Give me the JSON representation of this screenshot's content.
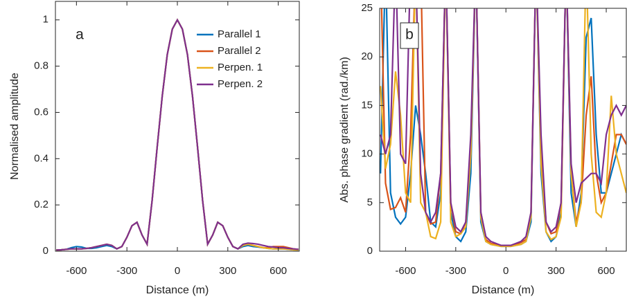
{
  "chart_data": [
    {
      "type": "line",
      "panel_label": "a",
      "xlabel": "Distance (m)",
      "ylabel": "Normalised amplitude",
      "xlim": [
        -725,
        725
      ],
      "ylim": [
        0,
        1.08
      ],
      "xticks": [
        -600,
        -300,
        0,
        300,
        600
      ],
      "yticks": [
        0,
        0.2,
        0.4,
        0.6,
        0.8,
        1
      ],
      "legend": "upper right",
      "x": [
        -720,
        -690,
        -660,
        -630,
        -600,
        -570,
        -540,
        -510,
        -480,
        -450,
        -420,
        -390,
        -360,
        -330,
        -300,
        -270,
        -240,
        -210,
        -180,
        -150,
        -120,
        -90,
        -60,
        -30,
        0,
        30,
        60,
        90,
        120,
        150,
        180,
        210,
        240,
        270,
        300,
        330,
        360,
        390,
        420,
        450,
        480,
        510,
        540,
        570,
        600,
        630,
        660,
        690,
        720
      ],
      "series": [
        {
          "name": "Parallel 1",
          "color": "#0072bd",
          "values": [
            0.005,
            0.006,
            0.008,
            0.015,
            0.02,
            0.018,
            0.012,
            0.012,
            0.015,
            0.02,
            0.025,
            0.02,
            0.01,
            0.02,
            0.06,
            0.11,
            0.125,
            0.07,
            0.03,
            0.22,
            0.45,
            0.67,
            0.85,
            0.96,
            1,
            0.96,
            0.85,
            0.67,
            0.45,
            0.22,
            0.03,
            0.07,
            0.125,
            0.11,
            0.06,
            0.02,
            0.01,
            0.02,
            0.025,
            0.02,
            0.018,
            0.015,
            0.012,
            0.01,
            0.01,
            0.01,
            0.008,
            0.006,
            0.005
          ]
        },
        {
          "name": "Parallel 2",
          "color": "#d95319",
          "values": [
            0.005,
            0.006,
            0.008,
            0.01,
            0.01,
            0.01,
            0.012,
            0.015,
            0.02,
            0.025,
            0.03,
            0.025,
            0.01,
            0.02,
            0.06,
            0.11,
            0.125,
            0.07,
            0.03,
            0.22,
            0.45,
            0.67,
            0.85,
            0.96,
            1,
            0.96,
            0.85,
            0.67,
            0.45,
            0.22,
            0.03,
            0.07,
            0.125,
            0.11,
            0.06,
            0.02,
            0.01,
            0.025,
            0.03,
            0.025,
            0.02,
            0.015,
            0.015,
            0.02,
            0.02,
            0.02,
            0.015,
            0.01,
            0.008
          ]
        },
        {
          "name": "Perpen. 1",
          "color": "#edb120",
          "values": [
            0.005,
            0.006,
            0.008,
            0.01,
            0.01,
            0.01,
            0.012,
            0.015,
            0.02,
            0.025,
            0.03,
            0.025,
            0.01,
            0.02,
            0.06,
            0.11,
            0.125,
            0.07,
            0.03,
            0.22,
            0.45,
            0.67,
            0.85,
            0.96,
            1,
            0.96,
            0.85,
            0.67,
            0.45,
            0.22,
            0.03,
            0.07,
            0.125,
            0.11,
            0.06,
            0.02,
            0.01,
            0.025,
            0.03,
            0.025,
            0.02,
            0.015,
            0.012,
            0.01,
            0.01,
            0.01,
            0.008,
            0.006,
            0.005
          ]
        },
        {
          "name": "Perpen. 2",
          "color": "#7e2f8e",
          "values": [
            0.005,
            0.006,
            0.008,
            0.01,
            0.01,
            0.01,
            0.012,
            0.015,
            0.02,
            0.025,
            0.03,
            0.025,
            0.01,
            0.02,
            0.06,
            0.11,
            0.125,
            0.07,
            0.03,
            0.22,
            0.45,
            0.67,
            0.85,
            0.96,
            1,
            0.96,
            0.85,
            0.67,
            0.45,
            0.22,
            0.03,
            0.07,
            0.125,
            0.11,
            0.06,
            0.02,
            0.01,
            0.03,
            0.035,
            0.033,
            0.03,
            0.025,
            0.02,
            0.018,
            0.015,
            0.015,
            0.012,
            0.01,
            0.008
          ]
        }
      ]
    },
    {
      "type": "line",
      "panel_label": "b",
      "xlabel": "Distance (m)",
      "ylabel": "Abs. phase gradient (rad./km)",
      "xlim": [
        -755,
        720
      ],
      "ylim": [
        0,
        25
      ],
      "xticks": [
        -600,
        -300,
        0,
        300,
        600
      ],
      "yticks": [
        0,
        5,
        10,
        15,
        20,
        25
      ],
      "x": [
        -750,
        -720,
        -690,
        -660,
        -630,
        -600,
        -570,
        -540,
        -510,
        -480,
        -450,
        -420,
        -390,
        -360,
        -330,
        -300,
        -270,
        -240,
        -210,
        -180,
        -150,
        -120,
        -90,
        -60,
        -30,
        0,
        30,
        60,
        90,
        120,
        150,
        180,
        210,
        240,
        270,
        300,
        330,
        360,
        390,
        420,
        450,
        480,
        510,
        540,
        570,
        600,
        630,
        660,
        690,
        720
      ],
      "series": [
        {
          "name": "Parallel 1",
          "color": "#0072bd",
          "values": [
            8,
            30,
            6,
            3.5,
            2.8,
            3.5,
            8,
            15,
            12,
            8,
            3,
            2.5,
            6,
            30,
            4,
            1.5,
            1,
            2,
            8,
            30,
            3,
            1,
            0.7,
            0.6,
            0.5,
            0.5,
            0.5,
            0.6,
            0.7,
            1,
            3,
            30,
            8,
            2,
            1,
            1.5,
            4,
            30,
            6,
            2.5,
            6,
            22,
            24,
            12,
            6,
            6,
            8,
            10,
            12,
            11
          ]
        },
        {
          "name": "Parallel 2",
          "color": "#d95319",
          "values": [
            30,
            7,
            4.3,
            4.5,
            5.5,
            4,
            12,
            30,
            30,
            4,
            2.8,
            3,
            8,
            30,
            5,
            2,
            1.8,
            3,
            10,
            30,
            4,
            1.2,
            0.8,
            0.7,
            0.6,
            0.5,
            0.6,
            0.7,
            0.9,
            1.2,
            4,
            30,
            10,
            3,
            1.8,
            2,
            5,
            30,
            8,
            3,
            5,
            14,
            18,
            8,
            5,
            6,
            9,
            12,
            12,
            11
          ]
        },
        {
          "name": "Perpen. 1",
          "color": "#edb120",
          "values": [
            17,
            8.5,
            11,
            18.5,
            14,
            6,
            5,
            30,
            5,
            4,
            1.5,
            1.3,
            3,
            30,
            3,
            1.5,
            1.8,
            2.5,
            10,
            30,
            3.5,
            1,
            0.7,
            0.6,
            0.5,
            0.5,
            0.5,
            0.6,
            0.7,
            1,
            3.5,
            30,
            9,
            2,
            1.2,
            1.5,
            3.5,
            30,
            8,
            2.5,
            5,
            30,
            10,
            4,
            3.5,
            6,
            16,
            10,
            8,
            6
          ]
        },
        {
          "name": "Perpen. 2",
          "color": "#7e2f8e",
          "values": [
            12,
            10,
            12,
            30,
            10,
            9,
            30,
            30,
            8,
            4,
            3,
            4,
            8,
            30,
            5,
            2.5,
            2,
            3,
            12,
            30,
            4,
            1.5,
            1,
            0.8,
            0.6,
            0.6,
            0.6,
            0.8,
            1,
            1.5,
            4,
            30,
            12,
            3,
            2,
            2.5,
            5,
            30,
            9,
            5,
            7,
            7.5,
            8,
            8,
            7,
            12,
            14,
            15,
            14,
            15
          ]
        }
      ]
    }
  ]
}
